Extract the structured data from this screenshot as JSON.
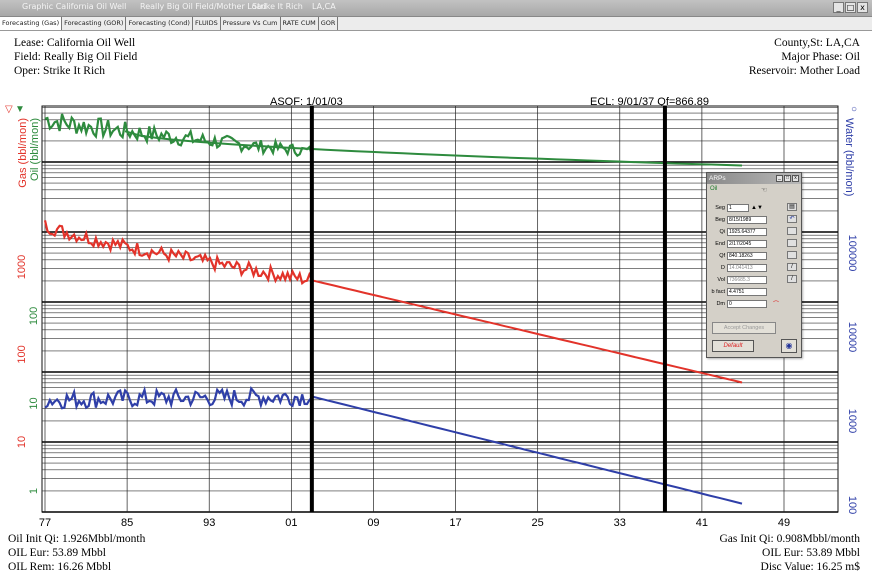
{
  "window": {
    "title_items": [
      "Graphic California Oil Well",
      "Really Big Oil Field/Mother Load",
      "Strike It Rich",
      "LA,CA"
    ],
    "controls": [
      "_",
      "□",
      "x"
    ]
  },
  "tabs": [
    {
      "label": "Forecasting (Gas)"
    },
    {
      "label": "Forecasting (GOR)"
    },
    {
      "label": "Forecasting (Cond)"
    },
    {
      "label": "FLUIDS"
    },
    {
      "label": "Pressure Vs Cum"
    },
    {
      "label": "RATE CUM"
    },
    {
      "label": "GOR"
    }
  ],
  "header": {
    "lease": "Lease: California Oil Well",
    "field": "Field: Really Big Oil Field",
    "oper": "Oper: Strike It Rich",
    "county": "County,St: LA,CA",
    "major_phase": "Major Phase: Oil",
    "reservoir": "Reservoir: Mother Load"
  },
  "annotations": {
    "asof": "ASOF: 1/01/03",
    "ecl": "ECL: 9/01/37 Qf=866.89"
  },
  "axes": {
    "left_gas_label": "Gas (bbl/mon)",
    "left_oil_label": "Oil (bbl/mon)",
    "right_water_label": "Water (bbl/mon)",
    "left_gas_marker": "▽",
    "left_oil_marker": "▼",
    "right_water_marker": "○",
    "left_gas_ticks": [
      "10",
      "100",
      "1000"
    ],
    "left_oil_ticks": [
      "1",
      "10",
      "100"
    ],
    "right_water_ticks": [
      "100",
      "1000",
      "10000",
      "100000"
    ],
    "x_ticks": [
      "77",
      "85",
      "93",
      "01",
      "09",
      "17",
      "25",
      "33",
      "41",
      "49"
    ]
  },
  "chart_data": {
    "type": "line",
    "xlabel": "",
    "ylabel": "",
    "x_ticks": [
      "77",
      "85",
      "93",
      "01",
      "09",
      "17",
      "25",
      "33",
      "41",
      "49"
    ],
    "y_scale": "log",
    "vertical_markers": [
      "ASOF: 1/01/03",
      "ECL: 9/01/37 Qf=866.89"
    ],
    "colors": {
      "oil": "#2e8b3e",
      "gas": "#e2332a",
      "water": "#2f3fa8",
      "grid": "#111111"
    },
    "series": [
      {
        "name": "Oil",
        "decades_above_grid_bottom": {
          "history_start": 5.62,
          "history_end": 5.15,
          "forecast_end": 4.95
        }
      },
      {
        "name": "Gas",
        "decades_above_grid_bottom": {
          "history_start": 4.1,
          "history_end": 3.31,
          "forecast_end": 1.85
        }
      },
      {
        "name": "Water",
        "decades_above_grid_bottom": {
          "history_start": 1.6,
          "history_end": 1.65,
          "forecast_end": 0.12
        }
      }
    ]
  },
  "arps": {
    "title": "ARPs",
    "phase": "Oil",
    "fields": [
      {
        "label": "Seg",
        "value": "1"
      },
      {
        "label": "Beg",
        "value": "8/15/1989"
      },
      {
        "label": "Qi",
        "value": "1925.64377"
      },
      {
        "label": "End",
        "value": "2/17/2045"
      },
      {
        "label": "Qf",
        "value": "840.18263"
      },
      {
        "label": "D",
        "value": "14.041413"
      },
      {
        "label": "Vol",
        "value": "736685.3"
      },
      {
        "label": "b fact",
        "value": "4.4751"
      },
      {
        "label": "Dm",
        "value": "0"
      }
    ],
    "accept_label": "Accept Changes",
    "default_label": "Default"
  },
  "footer": {
    "oil_init_qi": "Oil Init Qi: 1.926Mbbl/month",
    "oil_eur_left": "OIL Eur: 53.89 Mbbl",
    "oil_rem": "OIL Rem: 16.26 Mbbl",
    "gas_init_qi": "Gas Init Qi: 0.908Mbbl/month",
    "oil_eur_right": "OIL Eur: 53.89 Mbbl",
    "disc_value": "Disc Value: 16.25 m$"
  }
}
